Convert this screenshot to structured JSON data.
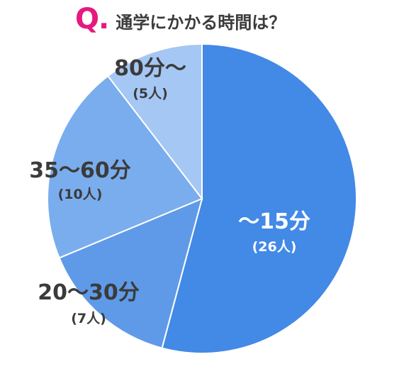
{
  "title": {
    "mark": "Q.",
    "text": "通学にかかる時間は？"
  },
  "colors": {
    "accent": "#e5197f",
    "text_dark": "#3b3b3b",
    "text_light": "#ffffff"
  },
  "chart_data": {
    "type": "pie",
    "title": "Q.通学にかかる時間は？",
    "categories": [
      "〜15分",
      "20〜30分",
      "35〜60分",
      "80分〜"
    ],
    "values": [
      26,
      7,
      10,
      5
    ],
    "value_labels": [
      "(26人)",
      "(7人)",
      "(10人)",
      "(5人)"
    ],
    "colors": [
      "#4389e6",
      "#5e9ae8",
      "#7aadee",
      "#a5c7f4"
    ],
    "start_angle": "12 o'clock",
    "direction": "clockwise"
  }
}
